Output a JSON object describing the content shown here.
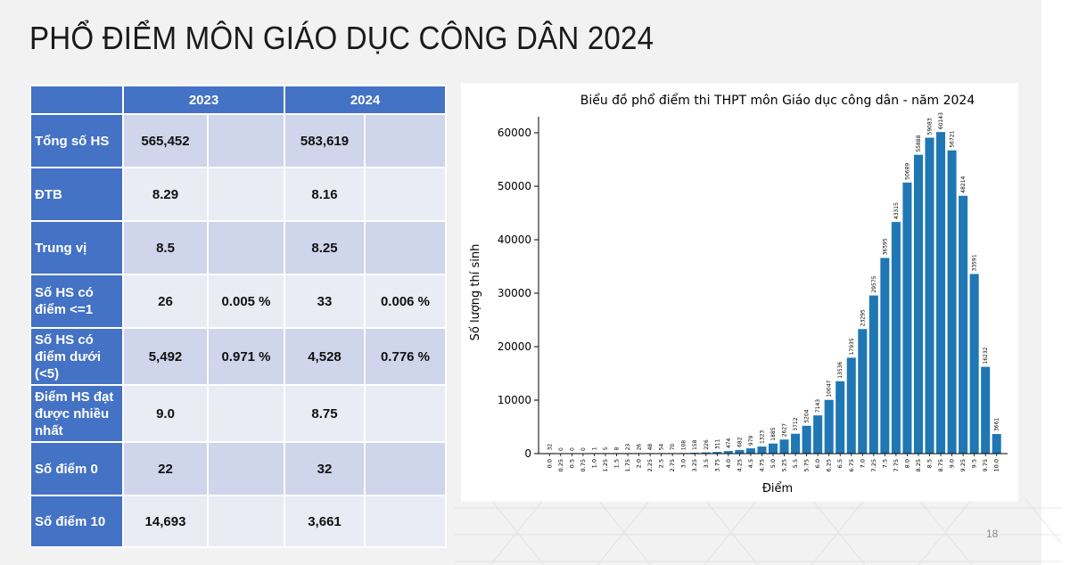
{
  "slide": {
    "title": "PHỔ ĐIỂM MÔN GIÁO DỤC CÔNG DÂN 2024",
    "page_number": "18"
  },
  "table": {
    "year_headers": [
      "2023",
      "2024"
    ],
    "rows": [
      {
        "label": "Tổng số HS",
        "v2023": "565,452",
        "p2023": "",
        "v2024": "583,619",
        "p2024": ""
      },
      {
        "label": "ĐTB",
        "v2023": "8.29",
        "p2023": "",
        "v2024": "8.16",
        "p2024": ""
      },
      {
        "label": "Trung vị",
        "v2023": "8.5",
        "p2023": "",
        "v2024": "8.25",
        "p2024": ""
      },
      {
        "label": "Số HS có điểm <=1",
        "v2023": "26",
        "p2023": "0.005 %",
        "v2024": "33",
        "p2024": "0.006 %"
      },
      {
        "label": "Số HS có điểm dưới (<5)",
        "v2023": "5,492",
        "p2023": "0.971 %",
        "v2024": "4,528",
        "p2024": "0.776 %"
      },
      {
        "label": "Điểm HS đạt được nhiều nhất",
        "v2023": "9.0",
        "p2023": "",
        "v2024": "8.75",
        "p2024": ""
      },
      {
        "label": "Số điểm 0",
        "v2023": "22",
        "p2023": "",
        "v2024": "32",
        "p2024": ""
      },
      {
        "label": "Số điểm 10",
        "v2023": "14,693",
        "p2023": "",
        "v2024": "3,661",
        "p2024": ""
      }
    ],
    "colors": {
      "header": "#4472c4",
      "row_odd": "#cfd5ea",
      "row_even": "#e9ebf5",
      "highlight_red": "#e00000"
    }
  },
  "chart_data": {
    "type": "bar",
    "title": "Biểu đồ phổ điểm thi THPT môn Giáo dục công dân - năm 2024",
    "xlabel": "Điểm",
    "ylabel": "Số lượng thí sinh",
    "categories": [
      "0.0",
      "0.25",
      "0.5",
      "0.75",
      "1.0",
      "1.25",
      "1.5",
      "1.75",
      "2.0",
      "2.25",
      "2.5",
      "2.75",
      "3.0",
      "3.25",
      "3.5",
      "3.75",
      "4.0",
      "4.25",
      "4.5",
      "4.75",
      "5.0",
      "5.25",
      "5.5",
      "5.75",
      "6.0",
      "6.25",
      "6.5",
      "6.75",
      "7.0",
      "7.25",
      "7.5",
      "7.75",
      "8.0",
      "8.25",
      "8.5",
      "8.75",
      "9.0",
      "9.25",
      "9.5",
      "9.75",
      "10.0"
    ],
    "values": [
      32,
      0,
      0,
      0,
      1,
      5,
      8,
      23,
      26,
      48,
      54,
      70,
      108,
      158,
      226,
      311,
      474,
      682,
      979,
      1323,
      1885,
      2627,
      3712,
      5204,
      7143,
      10047,
      13536,
      17935,
      23295,
      29575,
      36595,
      43315,
      50689,
      55888,
      59083,
      60143,
      56721,
      48214,
      33591,
      16232,
      3661
    ],
    "yticks": [
      0,
      10000,
      20000,
      30000,
      40000,
      50000,
      60000
    ],
    "ylim": [
      0,
      63000
    ],
    "bar_color": "#1f77b4",
    "grid": false
  }
}
